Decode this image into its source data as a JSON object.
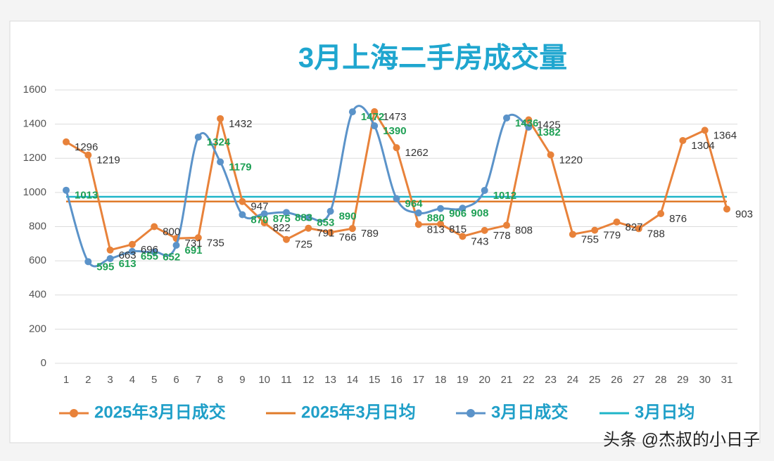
{
  "chart_data": {
    "type": "line",
    "title": "3月上海二手房成交量",
    "categories": [
      "1",
      "2",
      "3",
      "4",
      "5",
      "6",
      "7",
      "8",
      "9",
      "10",
      "11",
      "12",
      "13",
      "14",
      "15",
      "16",
      "17",
      "18",
      "19",
      "20",
      "21",
      "22",
      "23",
      "24",
      "25",
      "26",
      "27",
      "28",
      "29",
      "30",
      "31"
    ],
    "ylim": [
      0,
      1600
    ],
    "yticks": [
      0,
      200,
      400,
      600,
      800,
      1000,
      1200,
      1400,
      1600
    ],
    "grid": true,
    "legend": "bottom",
    "series": [
      {
        "name": "2025年3月日成交",
        "color": "#e8823a",
        "markers": true,
        "smooth": false,
        "data_labels": true,
        "label_color": "#333333",
        "values": [
          1296,
          1219,
          663,
          696,
          800,
          731,
          735,
          1432,
          947,
          822,
          725,
          791,
          766,
          789,
          1473,
          1262,
          813,
          815,
          743,
          778,
          808,
          1425,
          1220,
          755,
          779,
          827,
          788,
          876,
          1304,
          1364,
          903
        ]
      },
      {
        "name": "2025年3月日均",
        "color": "#e07b2a",
        "markers": false,
        "smooth": false,
        "data_labels": false,
        "values": [
          947,
          947,
          947,
          947,
          947,
          947,
          947,
          947,
          947,
          947,
          947,
          947,
          947,
          947,
          947,
          947,
          947,
          947,
          947,
          947,
          947,
          947,
          947,
          947,
          947,
          947,
          947,
          947,
          947,
          947,
          947
        ]
      },
      {
        "name": "3月日成交",
        "color": "#5b93c9",
        "markers": true,
        "smooth": true,
        "data_labels": true,
        "label_color": "#1fa055",
        "values": [
          1013,
          595,
          613,
          655,
          652,
          691,
          1324,
          1179,
          870,
          875,
          883,
          853,
          890,
          1472,
          1390,
          964,
          880,
          906,
          908,
          1012,
          1436,
          1382,
          null,
          null,
          null,
          null,
          null,
          null,
          null,
          null,
          null
        ]
      },
      {
        "name": "3月日均",
        "color": "#1fb5c8",
        "markers": false,
        "smooth": false,
        "data_labels": false,
        "values": [
          975,
          975,
          975,
          975,
          975,
          975,
          975,
          975,
          975,
          975,
          975,
          975,
          975,
          975,
          975,
          975,
          975,
          975,
          975,
          975,
          975,
          975,
          975,
          975,
          975,
          975,
          975,
          975,
          975,
          975,
          975
        ]
      }
    ]
  },
  "watermark": "头条 @杰叔的小日子"
}
